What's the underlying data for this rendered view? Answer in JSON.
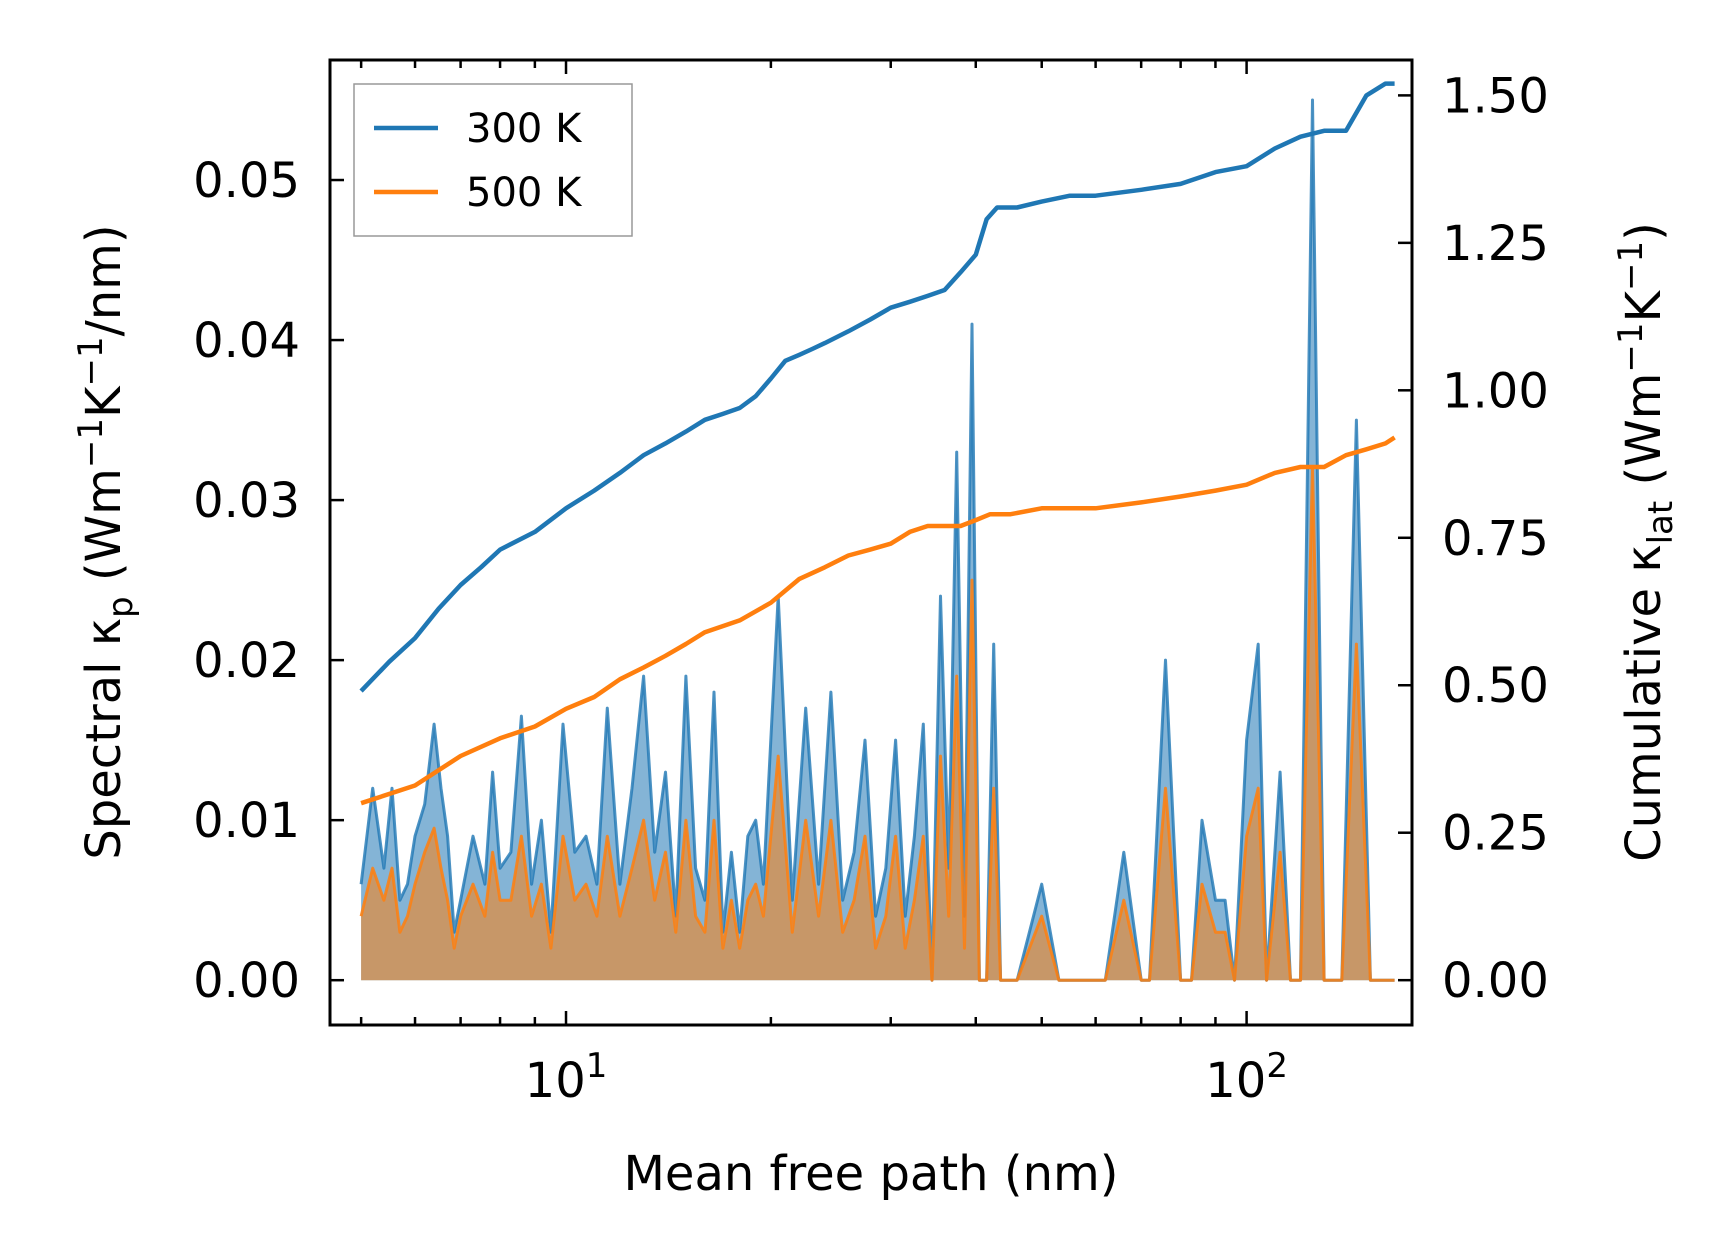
{
  "chart_data": {
    "type": "line",
    "xscale": "log",
    "xlabel": "Mean free path (nm)",
    "ylabel_left": {
      "prefix": "Spectral κ",
      "sub1": "p",
      "middle": " (Wm",
      "sup1": "−1",
      "k": "K",
      "sup2": "−1",
      "suffix": "/nm)"
    },
    "ylabel_right": {
      "prefix": "Cumulative κ",
      "sub1": "lat",
      "middle": " (Wm",
      "sup1": "−1",
      "k": "K",
      "sup2": "−1",
      "suffix": ")"
    },
    "xlim": [
      4.5,
      175
    ],
    "ylim_left": [
      -0.0028,
      0.0575
    ],
    "ylim_right": [
      -0.076,
      1.56
    ],
    "x_ticks": [
      {
        "value": 10,
        "base": "10",
        "exp": "1"
      },
      {
        "value": 100,
        "base": "10",
        "exp": "2"
      }
    ],
    "y_ticks_left": [
      "0.00",
      "0.01",
      "0.02",
      "0.03",
      "0.04",
      "0.05"
    ],
    "y_ticks_right": [
      "0.00",
      "0.25",
      "0.50",
      "0.75",
      "1.00",
      "1.25",
      "1.50"
    ],
    "legend": {
      "position": "upper-left",
      "entries": [
        "300 K",
        "500 K"
      ]
    },
    "colors": {
      "s300": "#1f77b4",
      "s500": "#ff7f0e"
    },
    "spectral_300K": {
      "x": [
        5.0,
        5.2,
        5.4,
        5.55,
        5.7,
        5.85,
        6.0,
        6.2,
        6.4,
        6.55,
        6.7,
        6.85,
        7.0,
        7.3,
        7.6,
        7.8,
        8.0,
        8.3,
        8.6,
        8.9,
        9.2,
        9.5,
        9.9,
        10.3,
        10.7,
        11.1,
        11.5,
        12.0,
        12.5,
        13.0,
        13.5,
        14.0,
        14.5,
        15.0,
        15.5,
        16.0,
        16.5,
        17.0,
        17.5,
        18.0,
        18.5,
        19.0,
        19.5,
        20.5,
        21.5,
        22.5,
        23.5,
        24.5,
        25.5,
        26.5,
        27.5,
        28.5,
        29.5,
        30.5,
        31.5,
        32.5,
        33.5,
        34.5,
        35.5,
        36.5,
        37.5,
        38.5,
        39.5,
        40.5,
        41.5,
        42.5,
        43.5,
        46.0,
        50.0,
        53.0,
        56.0,
        58.0,
        62.0,
        66.0,
        70.0,
        72.0,
        76.0,
        80.0,
        83.0,
        86.0,
        90.0,
        93.0,
        96.0,
        100.0,
        104.0,
        107.0,
        112.0,
        116.0,
        120.0,
        125.0,
        130.0,
        134.0,
        138.0,
        145.0,
        152.0,
        158.0,
        162.0,
        165.0
      ],
      "values": [
        0.006,
        0.012,
        0.007,
        0.012,
        0.005,
        0.006,
        0.009,
        0.011,
        0.016,
        0.012,
        0.009,
        0.003,
        0.005,
        0.009,
        0.006,
        0.013,
        0.007,
        0.008,
        0.0165,
        0.006,
        0.01,
        0.003,
        0.016,
        0.008,
        0.009,
        0.006,
        0.017,
        0.006,
        0.012,
        0.019,
        0.008,
        0.013,
        0.004,
        0.019,
        0.007,
        0.005,
        0.018,
        0.003,
        0.008,
        0.003,
        0.009,
        0.01,
        0.006,
        0.024,
        0.005,
        0.017,
        0.006,
        0.018,
        0.005,
        0.008,
        0.015,
        0.004,
        0.007,
        0.015,
        0.004,
        0.009,
        0.016,
        0.0,
        0.024,
        0.007,
        0.033,
        0.004,
        0.041,
        0.0,
        0.0,
        0.021,
        0.0,
        0.0,
        0.006,
        0.0,
        0.0,
        0.0,
        0.0,
        0.008,
        0.0,
        0.0,
        0.02,
        0.0,
        0.0,
        0.01,
        0.005,
        0.005,
        0.0,
        0.015,
        0.021,
        0.0,
        0.013,
        0.0,
        0.0,
        0.055,
        0.0,
        0.0,
        0.0,
        0.035,
        0.0,
        0.0,
        0.0,
        0.0
      ]
    },
    "spectral_500K": {
      "x": [
        5.0,
        5.2,
        5.4,
        5.55,
        5.7,
        5.85,
        6.0,
        6.2,
        6.4,
        6.55,
        6.7,
        6.85,
        7.0,
        7.3,
        7.6,
        7.8,
        8.0,
        8.3,
        8.6,
        8.9,
        9.2,
        9.5,
        9.9,
        10.3,
        10.7,
        11.1,
        11.5,
        12.0,
        12.5,
        13.0,
        13.5,
        14.0,
        14.5,
        15.0,
        15.5,
        16.0,
        16.5,
        17.0,
        17.5,
        18.0,
        18.5,
        19.0,
        19.5,
        20.5,
        21.5,
        22.5,
        23.5,
        24.5,
        25.5,
        26.5,
        27.5,
        28.5,
        29.5,
        30.5,
        31.5,
        32.5,
        33.5,
        34.5,
        35.5,
        36.5,
        37.5,
        38.5,
        39.5,
        40.5,
        41.5,
        42.5,
        43.5,
        46.0,
        50.0,
        53.0,
        56.0,
        58.0,
        62.0,
        66.0,
        70.0,
        72.0,
        76.0,
        80.0,
        83.0,
        86.0,
        90.0,
        93.0,
        96.0,
        100.0,
        104.0,
        107.0,
        112.0,
        116.0,
        120.0,
        125.0,
        130.0,
        134.0,
        138.0,
        145.0,
        152.0,
        158.0,
        162.0,
        165.0
      ],
      "values": [
        0.004,
        0.007,
        0.005,
        0.007,
        0.003,
        0.004,
        0.006,
        0.008,
        0.0095,
        0.007,
        0.005,
        0.002,
        0.004,
        0.006,
        0.004,
        0.008,
        0.005,
        0.005,
        0.009,
        0.004,
        0.006,
        0.002,
        0.009,
        0.005,
        0.006,
        0.004,
        0.009,
        0.004,
        0.007,
        0.01,
        0.005,
        0.008,
        0.003,
        0.01,
        0.004,
        0.003,
        0.01,
        0.002,
        0.005,
        0.002,
        0.005,
        0.006,
        0.004,
        0.014,
        0.003,
        0.01,
        0.004,
        0.01,
        0.003,
        0.005,
        0.009,
        0.002,
        0.004,
        0.009,
        0.002,
        0.005,
        0.009,
        0.0,
        0.014,
        0.004,
        0.019,
        0.002,
        0.025,
        0.0,
        0.0,
        0.012,
        0.0,
        0.0,
        0.004,
        0.0,
        0.0,
        0.0,
        0.0,
        0.005,
        0.0,
        0.0,
        0.012,
        0.0,
        0.0,
        0.006,
        0.003,
        0.003,
        0.0,
        0.009,
        0.012,
        0.0,
        0.008,
        0.0,
        0.0,
        0.032,
        0.0,
        0.0,
        0.0,
        0.021,
        0.0,
        0.0,
        0.0,
        0.0
      ]
    },
    "cumulative_300K": {
      "x": [
        5.0,
        5.5,
        6.0,
        6.5,
        7.0,
        7.5,
        8.0,
        9.0,
        10.0,
        11.0,
        12.0,
        13.0,
        14.0,
        15.0,
        16.0,
        17.0,
        18.0,
        19.0,
        20.0,
        21.0,
        22.0,
        23.0,
        24.0,
        26.0,
        28.0,
        30.0,
        32.0,
        34.0,
        36.0,
        38.0,
        40.0,
        41.5,
        43.0,
        46.0,
        50.0,
        55.0,
        60.0,
        70.0,
        80.0,
        90.0,
        100.0,
        110.0,
        120.0,
        130.0,
        140.0,
        150.0,
        160.0,
        165.0
      ],
      "values": [
        0.49,
        0.54,
        0.58,
        0.63,
        0.67,
        0.7,
        0.73,
        0.76,
        0.8,
        0.83,
        0.86,
        0.89,
        0.91,
        0.93,
        0.95,
        0.96,
        0.97,
        0.99,
        1.02,
        1.05,
        1.06,
        1.07,
        1.08,
        1.1,
        1.12,
        1.14,
        1.15,
        1.16,
        1.17,
        1.2,
        1.23,
        1.29,
        1.31,
        1.31,
        1.32,
        1.33,
        1.33,
        1.34,
        1.35,
        1.37,
        1.38,
        1.41,
        1.43,
        1.44,
        1.44,
        1.5,
        1.52,
        1.52
      ]
    },
    "cumulative_500K": {
      "x": [
        5.0,
        6.0,
        7.0,
        8.0,
        9.0,
        10.0,
        11.0,
        12.0,
        13.0,
        14.0,
        15.0,
        16.0,
        18.0,
        20.0,
        22.0,
        24.0,
        26.0,
        28.0,
        30.0,
        32.0,
        34.0,
        36.0,
        38.0,
        40.0,
        42.0,
        45.0,
        50.0,
        55.0,
        60.0,
        70.0,
        80.0,
        90.0,
        100.0,
        110.0,
        120.0,
        130.0,
        140.0,
        150.0,
        160.0,
        165.0
      ],
      "values": [
        0.3,
        0.33,
        0.38,
        0.41,
        0.43,
        0.46,
        0.48,
        0.51,
        0.53,
        0.55,
        0.57,
        0.59,
        0.61,
        0.64,
        0.68,
        0.7,
        0.72,
        0.73,
        0.74,
        0.76,
        0.77,
        0.77,
        0.77,
        0.78,
        0.79,
        0.79,
        0.8,
        0.8,
        0.8,
        0.81,
        0.82,
        0.83,
        0.84,
        0.86,
        0.87,
        0.87,
        0.89,
        0.9,
        0.91,
        0.92
      ]
    }
  }
}
